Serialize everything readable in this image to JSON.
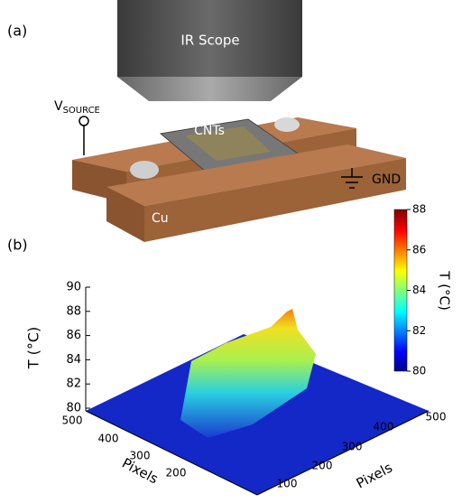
{
  "panel_a": {
    "label": "(a)",
    "scope": "IR Scope",
    "source": "V",
    "source_sub": "SOURCE",
    "sample": "CNTs",
    "ground": "GND",
    "electrode": "Cu"
  },
  "panel_b": {
    "label": "(b)",
    "z_label": "T (°C)",
    "zlim": [
      80,
      90
    ],
    "z_ticks": [
      80,
      82,
      84,
      86,
      88,
      90
    ],
    "x_label": "Pixels",
    "x_ticks": [
      200,
      300,
      400,
      500
    ],
    "y_label": "Pixels",
    "y_ticks": [
      100,
      200,
      300,
      400,
      500
    ],
    "colorbar": {
      "label": "T (°C)",
      "lim": [
        80,
        88
      ],
      "ticks": [
        80,
        82,
        84,
        86,
        88
      ]
    }
  }
}
